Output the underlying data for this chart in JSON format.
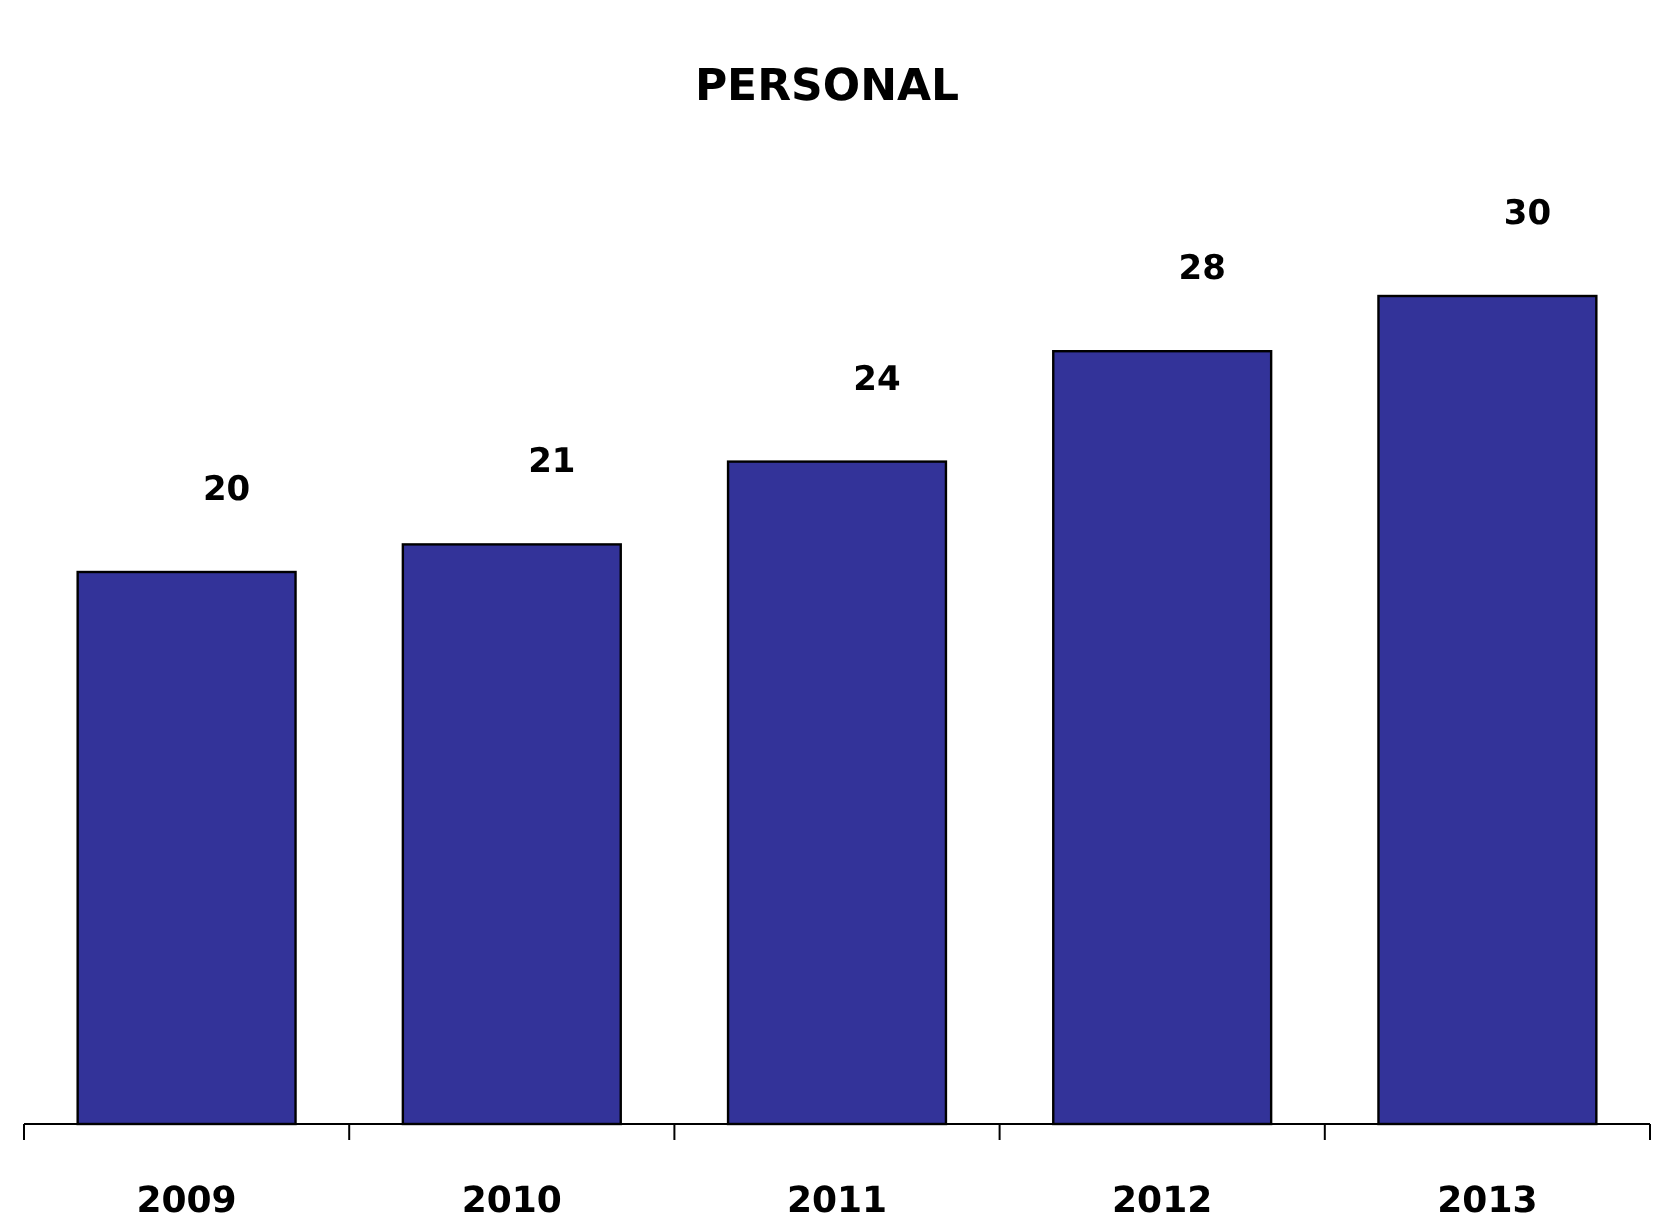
{
  "chart_data": {
    "type": "bar",
    "title": "PERSONAL",
    "categories": [
      "2009",
      "2010",
      "2011",
      "2012",
      "2013"
    ],
    "values": [
      20,
      21,
      24,
      28,
      30
    ],
    "color": "#333399",
    "data_labels": true
  }
}
